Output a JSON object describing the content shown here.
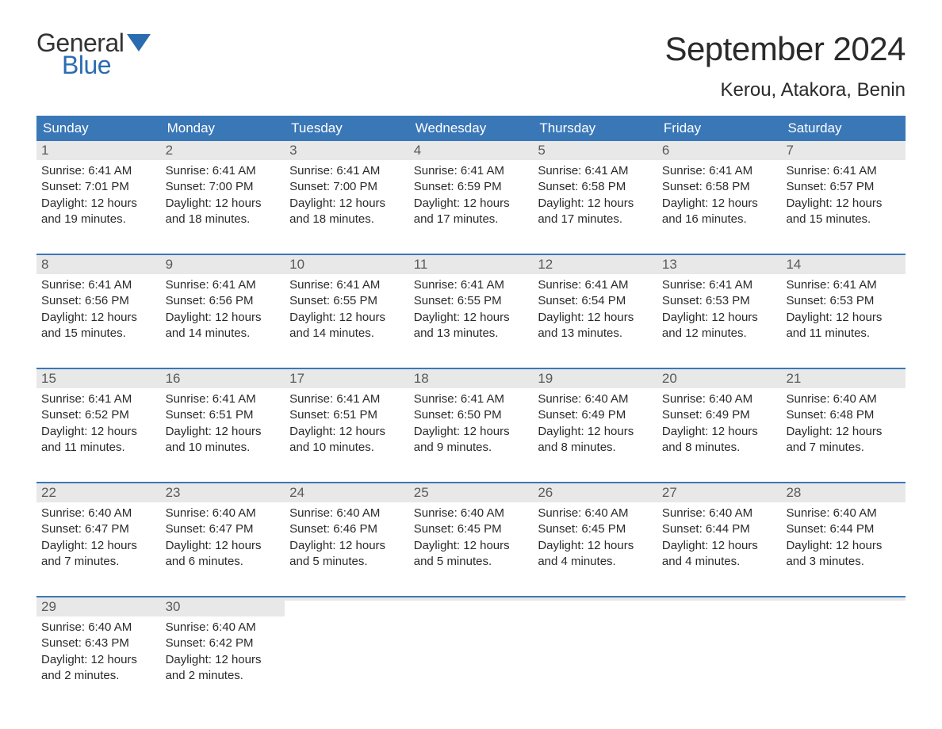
{
  "logo": {
    "text_general": "General",
    "text_blue": "Blue",
    "general_color": "#333333",
    "blue_color": "#2b6cb0",
    "flag_color": "#2b6cb0"
  },
  "header": {
    "title": "September 2024",
    "subtitle": "Kerou, Atakora, Benin",
    "title_fontsize": 42,
    "subtitle_fontsize": 24,
    "title_color": "#2a2a2a"
  },
  "calendar": {
    "header_bg": "#3a77b7",
    "header_text_color": "#ffffff",
    "daynum_bg": "#e8e8e8",
    "daynum_color": "#5a5a5a",
    "week_border_color": "#3a77b7",
    "body_text_color": "#2a2a2a",
    "background_color": "#ffffff",
    "weekdays": [
      "Sunday",
      "Monday",
      "Tuesday",
      "Wednesday",
      "Thursday",
      "Friday",
      "Saturday"
    ],
    "weeks": [
      [
        {
          "n": "1",
          "sunrise": "Sunrise: 6:41 AM",
          "sunset": "Sunset: 7:01 PM",
          "d1": "Daylight: 12 hours",
          "d2": "and 19 minutes."
        },
        {
          "n": "2",
          "sunrise": "Sunrise: 6:41 AM",
          "sunset": "Sunset: 7:00 PM",
          "d1": "Daylight: 12 hours",
          "d2": "and 18 minutes."
        },
        {
          "n": "3",
          "sunrise": "Sunrise: 6:41 AM",
          "sunset": "Sunset: 7:00 PM",
          "d1": "Daylight: 12 hours",
          "d2": "and 18 minutes."
        },
        {
          "n": "4",
          "sunrise": "Sunrise: 6:41 AM",
          "sunset": "Sunset: 6:59 PM",
          "d1": "Daylight: 12 hours",
          "d2": "and 17 minutes."
        },
        {
          "n": "5",
          "sunrise": "Sunrise: 6:41 AM",
          "sunset": "Sunset: 6:58 PM",
          "d1": "Daylight: 12 hours",
          "d2": "and 17 minutes."
        },
        {
          "n": "6",
          "sunrise": "Sunrise: 6:41 AM",
          "sunset": "Sunset: 6:58 PM",
          "d1": "Daylight: 12 hours",
          "d2": "and 16 minutes."
        },
        {
          "n": "7",
          "sunrise": "Sunrise: 6:41 AM",
          "sunset": "Sunset: 6:57 PM",
          "d1": "Daylight: 12 hours",
          "d2": "and 15 minutes."
        }
      ],
      [
        {
          "n": "8",
          "sunrise": "Sunrise: 6:41 AM",
          "sunset": "Sunset: 6:56 PM",
          "d1": "Daylight: 12 hours",
          "d2": "and 15 minutes."
        },
        {
          "n": "9",
          "sunrise": "Sunrise: 6:41 AM",
          "sunset": "Sunset: 6:56 PM",
          "d1": "Daylight: 12 hours",
          "d2": "and 14 minutes."
        },
        {
          "n": "10",
          "sunrise": "Sunrise: 6:41 AM",
          "sunset": "Sunset: 6:55 PM",
          "d1": "Daylight: 12 hours",
          "d2": "and 14 minutes."
        },
        {
          "n": "11",
          "sunrise": "Sunrise: 6:41 AM",
          "sunset": "Sunset: 6:55 PM",
          "d1": "Daylight: 12 hours",
          "d2": "and 13 minutes."
        },
        {
          "n": "12",
          "sunrise": "Sunrise: 6:41 AM",
          "sunset": "Sunset: 6:54 PM",
          "d1": "Daylight: 12 hours",
          "d2": "and 13 minutes."
        },
        {
          "n": "13",
          "sunrise": "Sunrise: 6:41 AM",
          "sunset": "Sunset: 6:53 PM",
          "d1": "Daylight: 12 hours",
          "d2": "and 12 minutes."
        },
        {
          "n": "14",
          "sunrise": "Sunrise: 6:41 AM",
          "sunset": "Sunset: 6:53 PM",
          "d1": "Daylight: 12 hours",
          "d2": "and 11 minutes."
        }
      ],
      [
        {
          "n": "15",
          "sunrise": "Sunrise: 6:41 AM",
          "sunset": "Sunset: 6:52 PM",
          "d1": "Daylight: 12 hours",
          "d2": "and 11 minutes."
        },
        {
          "n": "16",
          "sunrise": "Sunrise: 6:41 AM",
          "sunset": "Sunset: 6:51 PM",
          "d1": "Daylight: 12 hours",
          "d2": "and 10 minutes."
        },
        {
          "n": "17",
          "sunrise": "Sunrise: 6:41 AM",
          "sunset": "Sunset: 6:51 PM",
          "d1": "Daylight: 12 hours",
          "d2": "and 10 minutes."
        },
        {
          "n": "18",
          "sunrise": "Sunrise: 6:41 AM",
          "sunset": "Sunset: 6:50 PM",
          "d1": "Daylight: 12 hours",
          "d2": "and 9 minutes."
        },
        {
          "n": "19",
          "sunrise": "Sunrise: 6:40 AM",
          "sunset": "Sunset: 6:49 PM",
          "d1": "Daylight: 12 hours",
          "d2": "and 8 minutes."
        },
        {
          "n": "20",
          "sunrise": "Sunrise: 6:40 AM",
          "sunset": "Sunset: 6:49 PM",
          "d1": "Daylight: 12 hours",
          "d2": "and 8 minutes."
        },
        {
          "n": "21",
          "sunrise": "Sunrise: 6:40 AM",
          "sunset": "Sunset: 6:48 PM",
          "d1": "Daylight: 12 hours",
          "d2": "and 7 minutes."
        }
      ],
      [
        {
          "n": "22",
          "sunrise": "Sunrise: 6:40 AM",
          "sunset": "Sunset: 6:47 PM",
          "d1": "Daylight: 12 hours",
          "d2": "and 7 minutes."
        },
        {
          "n": "23",
          "sunrise": "Sunrise: 6:40 AM",
          "sunset": "Sunset: 6:47 PM",
          "d1": "Daylight: 12 hours",
          "d2": "and 6 minutes."
        },
        {
          "n": "24",
          "sunrise": "Sunrise: 6:40 AM",
          "sunset": "Sunset: 6:46 PM",
          "d1": "Daylight: 12 hours",
          "d2": "and 5 minutes."
        },
        {
          "n": "25",
          "sunrise": "Sunrise: 6:40 AM",
          "sunset": "Sunset: 6:45 PM",
          "d1": "Daylight: 12 hours",
          "d2": "and 5 minutes."
        },
        {
          "n": "26",
          "sunrise": "Sunrise: 6:40 AM",
          "sunset": "Sunset: 6:45 PM",
          "d1": "Daylight: 12 hours",
          "d2": "and 4 minutes."
        },
        {
          "n": "27",
          "sunrise": "Sunrise: 6:40 AM",
          "sunset": "Sunset: 6:44 PM",
          "d1": "Daylight: 12 hours",
          "d2": "and 4 minutes."
        },
        {
          "n": "28",
          "sunrise": "Sunrise: 6:40 AM",
          "sunset": "Sunset: 6:44 PM",
          "d1": "Daylight: 12 hours",
          "d2": "and 3 minutes."
        }
      ],
      [
        {
          "n": "29",
          "sunrise": "Sunrise: 6:40 AM",
          "sunset": "Sunset: 6:43 PM",
          "d1": "Daylight: 12 hours",
          "d2": "and 2 minutes."
        },
        {
          "n": "30",
          "sunrise": "Sunrise: 6:40 AM",
          "sunset": "Sunset: 6:42 PM",
          "d1": "Daylight: 12 hours",
          "d2": "and 2 minutes."
        },
        {
          "empty": true
        },
        {
          "empty": true
        },
        {
          "empty": true
        },
        {
          "empty": true
        },
        {
          "empty": true
        }
      ]
    ]
  }
}
